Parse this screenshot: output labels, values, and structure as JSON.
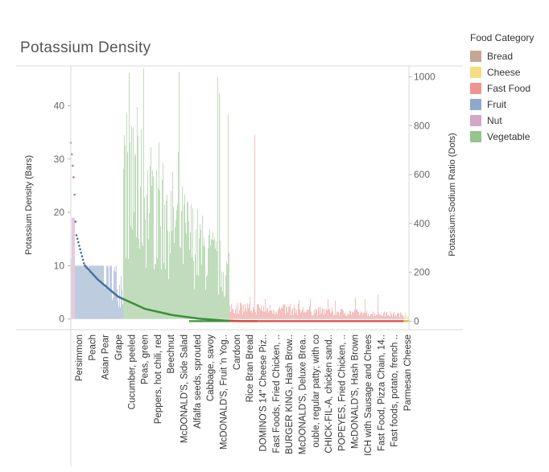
{
  "title": "Potassium Density",
  "legend": {
    "title": "Food Category",
    "items": [
      {
        "name": "Bread",
        "color": "#c6a694"
      },
      {
        "name": "Cheese",
        "color": "#f6dc83"
      },
      {
        "name": "Fast Food",
        "color": "#ee9591"
      },
      {
        "name": "Fruit",
        "color": "#8fa9cc"
      },
      {
        "name": "Nut",
        "color": "#d5a6c8"
      },
      {
        "name": "Vegetable",
        "color": "#95c48d"
      }
    ]
  },
  "chart_data": {
    "type": "bar",
    "title": "Potassium Density",
    "ylabel": "Potassium Density (Bars)",
    "y2label": "Potassium:Sodium Ratio (Dots)",
    "ylim": [
      -2,
      47
    ],
    "y2lim": [
      -35,
      1035
    ],
    "yticks": [
      0,
      10,
      20,
      30,
      40
    ],
    "y2ticks": [
      0,
      200,
      400,
      600,
      800,
      1000
    ],
    "grid": false,
    "legend_position": "right",
    "categories": [
      "Persimmon",
      "Peach",
      "Asian Pear",
      "Grape",
      "Cucumber, peeled",
      "Peas, green",
      "Peppers, hot chili, red",
      "Beechnut",
      "McDONALD'S, Side Salad",
      "Alfalfa seeds, sprouted",
      "Cabbage, savoy",
      "McDONALD'S, Fruit 'n Yog..",
      "Cardoon",
      "Rice Bran Bread",
      "DOMINO'S 14\" Cheese Piz..",
      "Fast Foods, Fried Chicken, ..",
      "BURGER KING, Hash Brow..",
      "McDONALD'S, Deluxe Brea..",
      "ouble, regular patty; with co",
      "CHICK-FIL-A, chicken sand..",
      "POPEYES, Fried Chicken, ..",
      "McDONALD'S, Hash Brown",
      "ICH with Sausage and Chees",
      "Fast Food, Pizza Chain, 14..",
      "Fast foods, potato, french ..",
      "Parmesan Cheese"
    ],
    "segments": [
      {
        "category": "Nut",
        "from": 0,
        "to": 0.012
      },
      {
        "category": "Fruit",
        "from": 0.012,
        "to": 0.155
      },
      {
        "category": "Vegetable",
        "from": 0.155,
        "to": 0.47
      },
      {
        "category": "Fast Food",
        "from": 0.47,
        "to": 0.985
      },
      {
        "category": "Cheese",
        "from": 0.985,
        "to": 1.0
      }
    ],
    "bars_profile": {
      "Nut": [
        33,
        25,
        19
      ],
      "Fruit": [
        28,
        4.5,
        10
      ],
      "Vegetable": [
        30,
        9,
        47
      ],
      "Fast Food": [
        2.5,
        0.9,
        5
      ],
      "Cheese": [
        2,
        0.3,
        3
      ]
    },
    "dots_profile": [
      {
        "x": 0.0,
        "y": 730
      },
      {
        "x": 0.01,
        "y": 560
      },
      {
        "x": 0.015,
        "y": 360
      },
      {
        "x": 0.04,
        "y": 230
      },
      {
        "x": 0.08,
        "y": 170
      },
      {
        "x": 0.14,
        "y": 100
      },
      {
        "x": 0.22,
        "y": 50
      },
      {
        "x": 0.3,
        "y": 25
      },
      {
        "x": 0.38,
        "y": 10
      },
      {
        "x": 0.45,
        "y": 3
      },
      {
        "x": 0.5,
        "y": 0
      },
      {
        "x": 1.0,
        "y": 0
      }
    ]
  }
}
